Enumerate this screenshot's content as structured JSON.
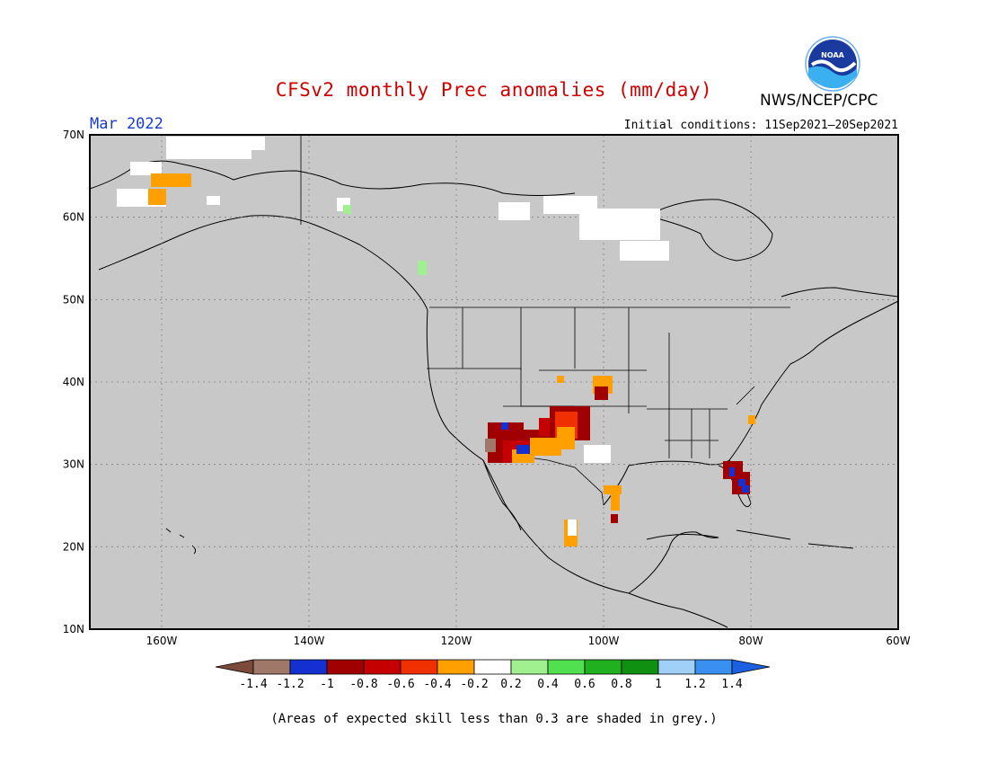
{
  "header": {
    "title": "CFSv2 monthly Prec anomalies (mm/day)",
    "month": "Mar 2022",
    "initial_conditions": "Initial conditions: 11Sep2021–20Sep2021",
    "agency": "NWS/NCEP/CPC",
    "logo_text": "NOAA"
  },
  "axes": {
    "lat_labels": [
      "70N",
      "60N",
      "50N",
      "40N",
      "30N",
      "20N",
      "10N"
    ],
    "lon_labels": [
      "160W",
      "140W",
      "120W",
      "100W",
      "80W",
      "60W"
    ]
  },
  "legend": {
    "colors": [
      "#7b4a3a",
      "#a0786a",
      "#1530d0",
      "#a00000",
      "#c40000",
      "#f03000",
      "#ffa000",
      "#ffffff",
      "#a0f090",
      "#50e050",
      "#20b020",
      "#109010",
      "#a0d0f8",
      "#3a90f0",
      "#1a60e0"
    ],
    "labels": [
      "-1.4",
      "-1.2",
      "-1",
      "-0.8",
      "-0.6",
      "-0.4",
      "-0.2",
      "0.2",
      "0.4",
      "0.6",
      "0.8",
      "1",
      "1.2",
      "1.4"
    ]
  },
  "map_colors": {
    "background": "#c8c8c8",
    "white": "#ffffff",
    "dark_red": "#a00000",
    "red": "#c40000",
    "orange_red": "#f03000",
    "orange": "#ffa000",
    "light_green": "#a0f090",
    "blue": "#1530d0",
    "brown": "#a0786a"
  },
  "footnote": "(Areas of expected skill less than 0.3 are shaded in grey.)"
}
